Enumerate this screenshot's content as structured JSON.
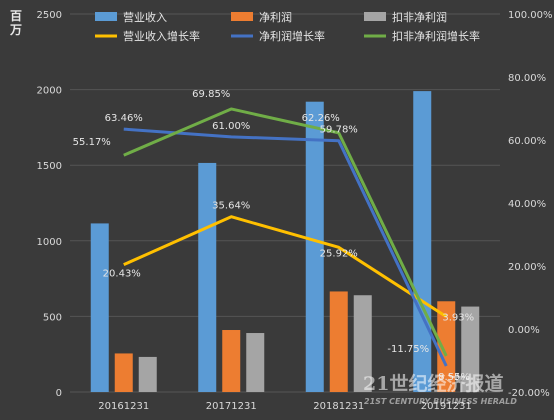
{
  "chart_data": {
    "type": "bar",
    "unit_label": "百万",
    "categories": [
      "20161231",
      "20171231",
      "20181231",
      "20191231"
    ],
    "y_left": {
      "min": 0,
      "max": 2500,
      "ticks": [
        "0",
        "500",
        "1000",
        "1500",
        "2000",
        "2500"
      ]
    },
    "y_right": {
      "min": -20,
      "max": 100,
      "ticks": [
        "-20.00%",
        "0.00%",
        "20.00%",
        "40.00%",
        "60.00%",
        "80.00%",
        "100.00%"
      ]
    },
    "bar_series": [
      {
        "name": "营业收入",
        "color": "#5b9bd5",
        "values": [
          1115,
          1515,
          1920,
          1990
        ]
      },
      {
        "name": "净利润",
        "color": "#ed7d31",
        "values": [
          255,
          410,
          665,
          600
        ]
      },
      {
        "name": "扣非净利润",
        "color": "#a5a5a5",
        "values": [
          232,
          390,
          640,
          565
        ]
      }
    ],
    "line_series": [
      {
        "name": "营业收入增长率",
        "color": "#ffc000",
        "values": [
          20.43,
          35.64,
          25.92,
          3.93
        ],
        "labels": [
          "20.43%",
          "35.64%",
          "25.92%",
          "3.93%"
        ]
      },
      {
        "name": "净利润增长率",
        "color": "#4472c4",
        "values": [
          63.46,
          61.0,
          59.78,
          -11.75
        ],
        "labels": [
          "63.46%",
          "61.00%",
          "59.78%",
          "-11.75%"
        ]
      },
      {
        "name": "扣非净利润增长率",
        "color": "#70ad47",
        "values": [
          55.17,
          69.85,
          62.26,
          -8.55
        ],
        "labels": [
          "55.17%",
          "69.85%",
          "62.26%",
          "-8.55%"
        ]
      }
    ],
    "grid": true,
    "legend_position": "top"
  },
  "watermark": {
    "line1": "21世纪经济报道",
    "line2": "21ST CENTURY BUSINESS HERALD"
  }
}
